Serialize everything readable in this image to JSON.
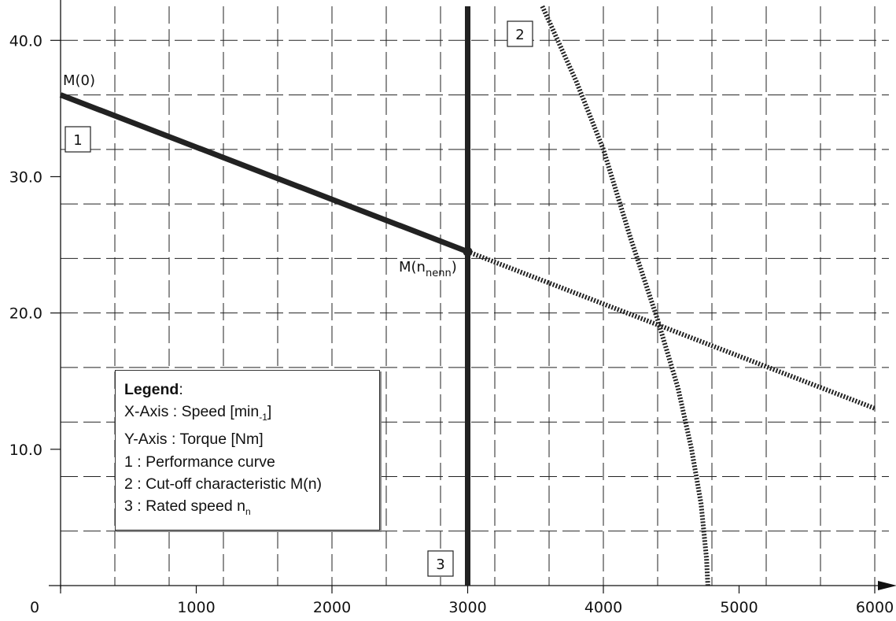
{
  "chart_data": {
    "type": "line",
    "xlim": [
      0,
      6000
    ],
    "ylim": [
      0,
      42.5
    ],
    "x_ticks": [
      0,
      1000,
      2000,
      3000,
      4000,
      5000,
      6000
    ],
    "y_ticks": [
      10.0,
      20.0,
      30.0,
      40.0
    ],
    "x_tick_labels": [
      "0",
      "1000",
      "2000",
      "3000",
      "4000",
      "5000",
      "6000"
    ],
    "y_tick_labels": [
      "10.0",
      "20.0",
      "30.0",
      "40.0"
    ],
    "x_grid_step": 400,
    "y_grid_step": 4,
    "grid": true,
    "series": [
      {
        "id": "1",
        "style": "solid",
        "points": [
          [
            0,
            36.0
          ],
          [
            3000,
            24.5
          ]
        ]
      },
      {
        "id": "1-extension",
        "style": "dotted",
        "points": [
          [
            3000,
            24.5
          ],
          [
            6000,
            13.0
          ]
        ]
      },
      {
        "id": "2",
        "style": "dotted",
        "points": [
          [
            3550,
            42.5
          ],
          [
            3800,
            37.0
          ],
          [
            4000,
            32.0
          ],
          [
            4200,
            25.5
          ],
          [
            4400,
            19.5
          ],
          [
            4550,
            14.5
          ],
          [
            4650,
            10.0
          ],
          [
            4720,
            6.0
          ],
          [
            4760,
            2.0
          ],
          [
            4770,
            0
          ]
        ]
      },
      {
        "id": "3",
        "style": "solid",
        "points": [
          [
            3000,
            0
          ],
          [
            3000,
            42.5
          ]
        ]
      }
    ],
    "annotations": {
      "m0": "M(0)",
      "m_rated": "M(n",
      "m_rated_sub": "nenn",
      "m_rated_close": ")",
      "marker_1": "1",
      "marker_2": "2",
      "marker_3": "3"
    },
    "legend": {
      "title": "Legend",
      "title_suffix": ":",
      "x_axis_prefix": "X-Axis : Speed [min",
      "x_axis_sup": "-1",
      "x_axis_suffix": "]",
      "y_axis": "Y-Axis : Torque [Nm]",
      "item_1": "1 : Performance curve",
      "item_2": "2 : Cut-off characteristic M(n)",
      "item_3_prefix": "3 : Rated speed n",
      "item_3_sub": "n",
      "placement": "lower-left"
    }
  }
}
